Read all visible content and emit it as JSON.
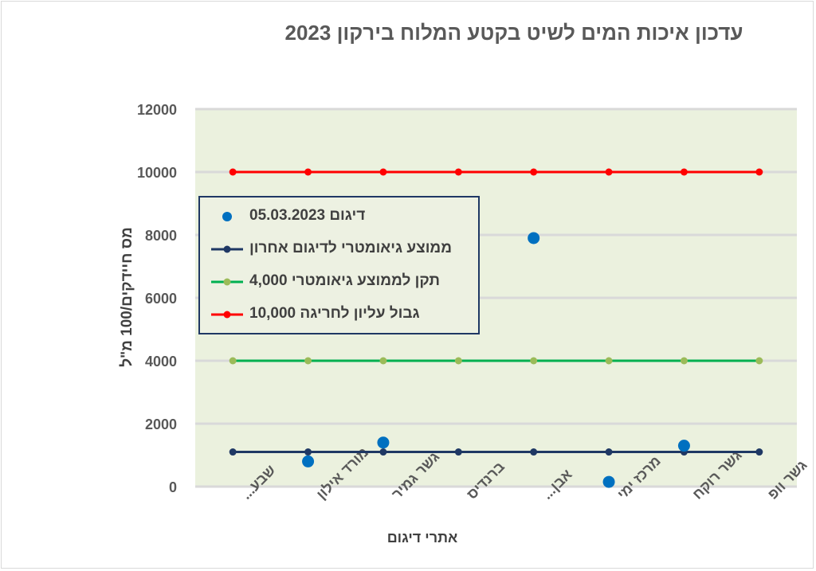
{
  "title": "עדכון איכות המים לשיט בקטע המלוח בירקון 2023",
  "chart_data": {
    "type": "line",
    "title": "עדכון איכות המים לשיט בקטע המלוח בירקון 2023",
    "xlabel": "אתרי דיגום",
    "ylabel": "מס חיידקים/100 מ\"ל",
    "ylim": [
      0,
      12000
    ],
    "yticks": [
      0,
      2000,
      4000,
      6000,
      8000,
      10000,
      12000
    ],
    "grid": true,
    "legend_position": "top-left",
    "background_color": "#ebf1de",
    "categories": [
      "שבע...",
      "מורד אילון",
      "גשר גמיר",
      "ברנדיס",
      "אבן...",
      "מרכז ימי",
      "גשר רוקח",
      "גשר וופ"
    ],
    "series": [
      {
        "name": "דיגום 05.03.2023",
        "style": "scatter",
        "color": "#0070c0",
        "values": [
          null,
          800,
          1400,
          null,
          7900,
          150,
          1300,
          null
        ]
      },
      {
        "name": "ממוצע  גיאומטרי לדיגום אחרון",
        "style": "line",
        "color": "#1f3864",
        "values": [
          1100,
          1100,
          1100,
          1100,
          1100,
          1100,
          1100,
          1100
        ]
      },
      {
        "name": "תקן לממוצע גיאומטרי 4,000",
        "style": "line",
        "color": "#00b050",
        "marker_color": "#9bbb59",
        "values": [
          4000,
          4000,
          4000,
          4000,
          4000,
          4000,
          4000,
          4000
        ]
      },
      {
        "name": "גבול עליון לחריגה 10,000",
        "style": "line",
        "color": "#ff0000",
        "values": [
          10000,
          10000,
          10000,
          10000,
          10000,
          10000,
          10000,
          10000
        ]
      }
    ]
  }
}
